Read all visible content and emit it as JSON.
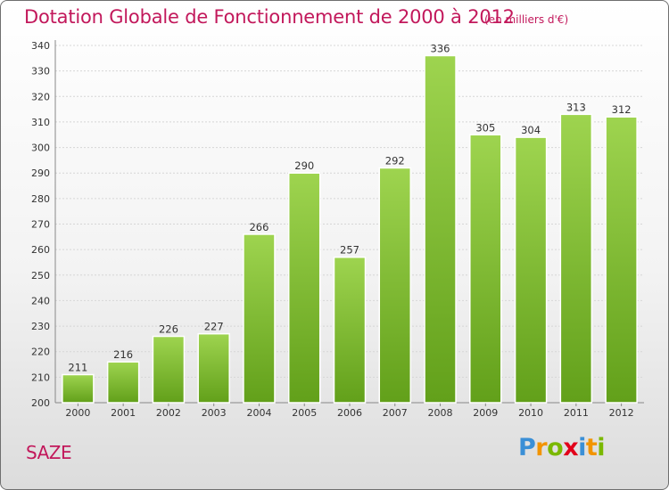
{
  "header": {
    "title": "Dotation Globale de Fonctionnement de 2000 à 2012",
    "subtitle": "(en milliers d'€)"
  },
  "commune": "SAZE",
  "logo": {
    "text": "Proxiti",
    "letters": [
      {
        "char": "P",
        "color": "#3a8fd6"
      },
      {
        "char": "r",
        "color": "#f29400"
      },
      {
        "char": "o",
        "color": "#7ab800"
      },
      {
        "char": "x",
        "color": "#e2001a"
      },
      {
        "char": "i",
        "color": "#3a8fd6"
      },
      {
        "char": "t",
        "color": "#f29400"
      },
      {
        "char": "i",
        "color": "#7ab800"
      }
    ]
  },
  "colors": {
    "bar_top": "#9ed44f",
    "bar_bottom": "#62a01a",
    "accent": "#c2185b"
  },
  "chart_data": {
    "type": "bar",
    "categories": [
      "2000",
      "2001",
      "2002",
      "2003",
      "2004",
      "2005",
      "2006",
      "2007",
      "2008",
      "2009",
      "2010",
      "2011",
      "2012"
    ],
    "values": [
      211,
      216,
      226,
      227,
      266,
      290,
      257,
      292,
      336,
      305,
      304,
      313,
      312
    ],
    "title": "Dotation Globale de Fonctionnement de 2000 à 2012",
    "ylim": [
      200,
      340
    ],
    "yticks": [
      200,
      210,
      220,
      230,
      240,
      250,
      260,
      270,
      280,
      290,
      300,
      310,
      320,
      330,
      340
    ],
    "grid": true,
    "data_labels": true
  }
}
